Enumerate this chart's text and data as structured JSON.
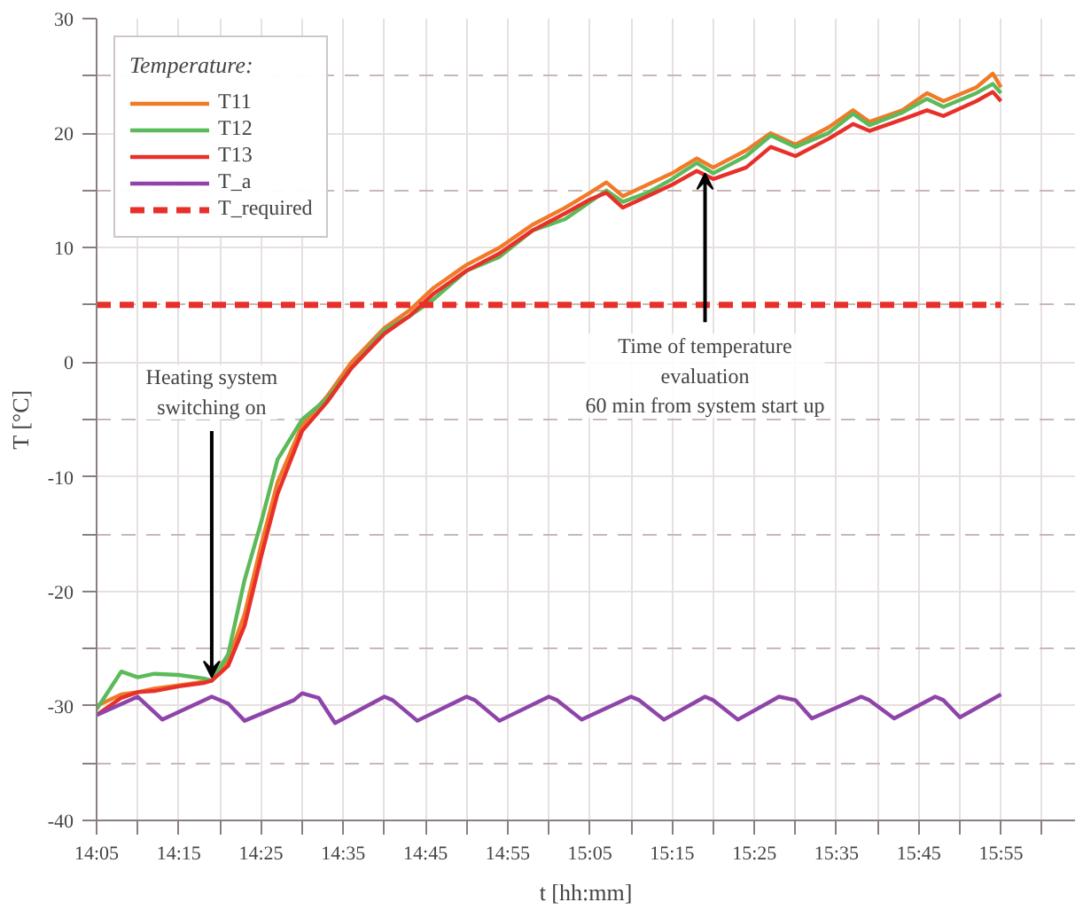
{
  "chart_data": {
    "type": "line",
    "xlabel": "t [hh:mm]",
    "ylabel": "T [°C]",
    "legend_title": "Temperature:",
    "legend": "top left",
    "grid": true,
    "line_style": "solid",
    "marker": "none",
    "x": [
      14.0833,
      14.1333,
      14.1667,
      14.2,
      14.25,
      14.3,
      14.3167,
      14.35,
      14.3833,
      14.4167,
      14.45,
      14.5,
      14.55,
      14.6,
      14.6667,
      14.7167,
      14.7667,
      14.8333,
      14.9,
      14.9667,
      15.0333,
      15.0833,
      15.1167,
      15.15,
      15.2,
      15.25,
      15.3,
      15.3333,
      15.4,
      15.45,
      15.5,
      15.5667,
      15.6167,
      15.65,
      15.7167,
      15.7667,
      15.8,
      15.8667,
      15.9,
      15.9167
    ],
    "series": [
      {
        "name": "T11",
        "color": "#f07a28",
        "values": [
          -30,
          -29,
          -28.8,
          -28.5,
          -28.2,
          -27.9,
          -27.8,
          -26,
          -22,
          -16,
          -10.5,
          -5.5,
          -3,
          0,
          3,
          4.5,
          6.5,
          8.5,
          10,
          12,
          13.5,
          14.8,
          15.7,
          14.5,
          15.5,
          16.5,
          17.8,
          17,
          18.5,
          20,
          19,
          20.5,
          22,
          21,
          22,
          23.5,
          22.8,
          24,
          25.2,
          24
        ]
      },
      {
        "name": "T12",
        "color": "#5cba5a",
        "values": [
          -30.3,
          -27,
          -27.5,
          -27.2,
          -27.3,
          -27.6,
          -27.8,
          -25.5,
          -19,
          -14,
          -8.5,
          -5,
          -3.2,
          -0.5,
          2.8,
          4,
          5.5,
          8,
          9.2,
          11.5,
          12.5,
          14,
          15,
          14,
          14.8,
          16,
          17.4,
          16.5,
          18,
          19.8,
          18.8,
          20,
          21.7,
          20.7,
          21.8,
          23,
          22.3,
          23.5,
          24.3,
          23.5
        ]
      },
      {
        "name": "T13",
        "color": "#e8302a",
        "values": [
          -30.8,
          -29.3,
          -28.8,
          -28.7,
          -28.3,
          -28,
          -27.8,
          -26.5,
          -23,
          -17,
          -11.5,
          -6,
          -3.5,
          -0.5,
          2.5,
          4,
          6,
          8,
          9.5,
          11.5,
          13,
          14.2,
          14.8,
          13.5,
          14.5,
          15.5,
          16.7,
          16,
          17,
          18.8,
          18,
          19.5,
          20.8,
          20.2,
          21.2,
          22,
          21.5,
          22.8,
          23.6,
          22.8
        ]
      },
      {
        "name": "T_a",
        "color": "#8e44a8",
        "x": [
          14.0833,
          14.1667,
          14.2167,
          14.3167,
          14.35,
          14.3833,
          14.4833,
          14.5,
          14.5333,
          14.5667,
          14.6667,
          14.6833,
          14.7333,
          14.8333,
          14.85,
          14.9,
          15.0,
          15.0167,
          15.0667,
          15.1667,
          15.1833,
          15.2333,
          15.3167,
          15.3333,
          15.3833,
          15.4667,
          15.5,
          15.5333,
          15.6333,
          15.65,
          15.7,
          15.7833,
          15.8,
          15.8333,
          15.9167
        ],
        "values": [
          -30.8,
          -29.2,
          -31.2,
          -29.2,
          -29.8,
          -31.3,
          -29.5,
          -28.9,
          -29.3,
          -31.5,
          -29.2,
          -29.5,
          -31.3,
          -29.2,
          -29.5,
          -31.3,
          -29.2,
          -29.5,
          -31.2,
          -29.2,
          -29.5,
          -31.2,
          -29.2,
          -29.5,
          -31.2,
          -29.2,
          -29.5,
          -31.1,
          -29.2,
          -29.5,
          -31.1,
          -29.2,
          -29.5,
          -31,
          -29
        ]
      }
    ],
    "ref_lines": [
      {
        "axis": "y",
        "value": 5,
        "label": "T_required",
        "color": "#e8302a",
        "line_style": "dashed"
      }
    ],
    "annotations": [
      {
        "text": "Heating system\nswitching on",
        "x": 14.3167,
        "y": -28
      },
      {
        "text": "Time of temperature\nevaluation\n60 min from system start up",
        "x": 15.3167,
        "y": 17
      }
    ],
    "xlim": [
      14.0833,
      16.0667
    ],
    "ylim": [
      -40,
      30
    ],
    "xticks": [
      {
        "value": 14.0833,
        "label": "14:05"
      },
      {
        "value": 14.1667,
        "label": null
      },
      {
        "value": 14.25,
        "label": "14:15"
      },
      {
        "value": 14.3333,
        "label": null
      },
      {
        "value": 14.4167,
        "label": "14:25"
      },
      {
        "value": 14.5,
        "label": null
      },
      {
        "value": 14.5833,
        "label": "14:35"
      },
      {
        "value": 14.6667,
        "label": null
      },
      {
        "value": 14.75,
        "label": "14:45"
      },
      {
        "value": 14.8333,
        "label": null
      },
      {
        "value": 14.9167,
        "label": "14:55"
      },
      {
        "value": 15.0,
        "label": null
      },
      {
        "value": 15.0833,
        "label": "15:05"
      },
      {
        "value": 15.1667,
        "label": null
      },
      {
        "value": 15.25,
        "label": "15:15"
      },
      {
        "value": 15.3333,
        "label": null
      },
      {
        "value": 15.4167,
        "label": "15:25"
      },
      {
        "value": 15.5,
        "label": null
      },
      {
        "value": 15.5833,
        "label": "15:35"
      },
      {
        "value": 15.6667,
        "label": null
      },
      {
        "value": 15.75,
        "label": "15:45"
      },
      {
        "value": 15.8333,
        "label": null
      },
      {
        "value": 15.9167,
        "label": "15:55"
      },
      {
        "value": 16.0,
        "label": null
      }
    ],
    "yticks": [
      -40,
      {
        "value": -35,
        "label": null
      },
      -30,
      {
        "value": -25,
        "label": null
      },
      -20,
      {
        "value": -15,
        "label": null
      },
      -10,
      {
        "value": -5,
        "label": null
      },
      0,
      {
        "value": 5,
        "label": null
      },
      10,
      {
        "value": 15,
        "label": null
      },
      20,
      {
        "value": 25,
        "label": null
      },
      30
    ]
  }
}
